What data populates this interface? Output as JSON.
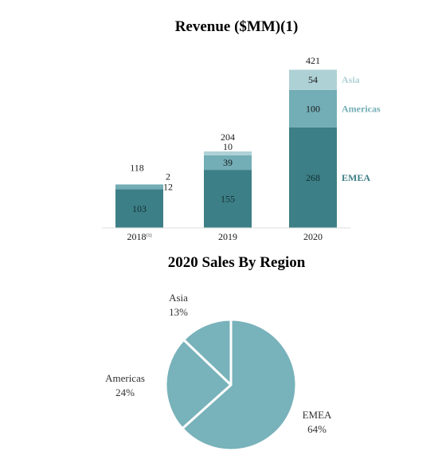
{
  "chart_data": [
    {
      "type": "bar",
      "stacked": true,
      "title": "Revenue ($MM)(1)",
      "categories": [
        "2018",
        "2019",
        "2020"
      ],
      "category_superscripts": [
        "(1)",
        "",
        ""
      ],
      "totals": [
        118,
        204,
        421
      ],
      "series": [
        {
          "name": "EMEA",
          "values": [
            103,
            155,
            268
          ],
          "color": "#3d7f86"
        },
        {
          "name": "Americas",
          "values": [
            12,
            39,
            100
          ],
          "color": "#73adb6"
        },
        {
          "name": "Asia",
          "values": [
            2,
            10,
            54
          ],
          "color": "#aed1d6"
        }
      ],
      "ylim": [
        0,
        421
      ],
      "grid": false,
      "legend": "right of 2020 bar"
    },
    {
      "type": "pie",
      "title": "2020 Sales By Region",
      "slices": [
        {
          "label": "EMEA",
          "value": 64,
          "display": "64%",
          "color": "#78b2ba"
        },
        {
          "label": "Americas",
          "value": 24,
          "display": "24%",
          "color": "#78b2ba"
        },
        {
          "label": "Asia",
          "value": 13,
          "display": "13%",
          "color": "#78b2ba"
        }
      ]
    }
  ]
}
